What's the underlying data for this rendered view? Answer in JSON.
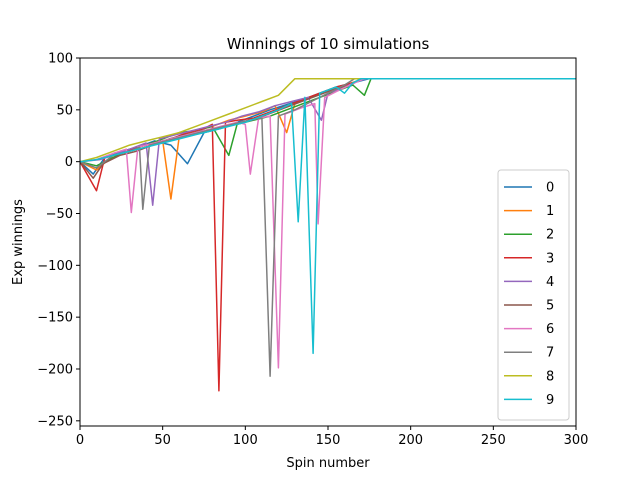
{
  "chart_data": {
    "type": "line",
    "title": "Winnings of 10 simulations",
    "xlabel": "Spin number",
    "ylabel": "Exp winnings",
    "xlim": [
      0,
      300
    ],
    "ylim": [
      -255,
      100
    ],
    "x_ticks": [
      0,
      50,
      100,
      150,
      200,
      250,
      300
    ],
    "y_ticks": [
      100,
      50,
      0,
      -50,
      -100,
      -150,
      -200,
      -250
    ],
    "x_tick_labels": [
      "0",
      "50",
      "100",
      "150",
      "200",
      "250",
      "300"
    ],
    "y_tick_labels": [
      "100",
      "50",
      "0",
      "−50",
      "−100",
      "−150",
      "−200",
      "−250"
    ],
    "grid": false,
    "legend_position": "lower-right",
    "series": [
      {
        "name": "0",
        "color": "#1f77b4",
        "points": [
          [
            0,
            0
          ],
          [
            8,
            -12
          ],
          [
            15,
            4
          ],
          [
            25,
            10
          ],
          [
            35,
            14
          ],
          [
            45,
            20
          ],
          [
            55,
            16
          ],
          [
            65,
            -2
          ],
          [
            75,
            28
          ],
          [
            85,
            32
          ],
          [
            95,
            38
          ],
          [
            105,
            44
          ],
          [
            115,
            50
          ],
          [
            125,
            55
          ],
          [
            135,
            60
          ],
          [
            145,
            66
          ],
          [
            155,
            72
          ],
          [
            165,
            76
          ],
          [
            170,
            78
          ],
          [
            175,
            80
          ],
          [
            300,
            80
          ]
        ]
      },
      {
        "name": "1",
        "color": "#ff7f0e",
        "points": [
          [
            0,
            0
          ],
          [
            10,
            -8
          ],
          [
            20,
            6
          ],
          [
            30,
            10
          ],
          [
            40,
            14
          ],
          [
            50,
            20
          ],
          [
            55,
            -36
          ],
          [
            60,
            24
          ],
          [
            70,
            30
          ],
          [
            80,
            34
          ],
          [
            90,
            40
          ],
          [
            100,
            44
          ],
          [
            110,
            48
          ],
          [
            118,
            54
          ],
          [
            125,
            28
          ],
          [
            130,
            56
          ],
          [
            140,
            62
          ],
          [
            150,
            68
          ],
          [
            160,
            74
          ],
          [
            168,
            78
          ],
          [
            172,
            80
          ],
          [
            300,
            80
          ]
        ]
      },
      {
        "name": "2",
        "color": "#2ca02c",
        "points": [
          [
            0,
            0
          ],
          [
            10,
            -4
          ],
          [
            20,
            4
          ],
          [
            30,
            12
          ],
          [
            40,
            16
          ],
          [
            50,
            22
          ],
          [
            60,
            28
          ],
          [
            70,
            30
          ],
          [
            80,
            34
          ],
          [
            90,
            6
          ],
          [
            95,
            36
          ],
          [
            105,
            40
          ],
          [
            115,
            44
          ],
          [
            125,
            50
          ],
          [
            135,
            56
          ],
          [
            145,
            62
          ],
          [
            155,
            68
          ],
          [
            165,
            74
          ],
          [
            172,
            64
          ],
          [
            176,
            80
          ],
          [
            300,
            80
          ]
        ]
      },
      {
        "name": "3",
        "color": "#d62728",
        "points": [
          [
            0,
            0
          ],
          [
            10,
            -28
          ],
          [
            15,
            4
          ],
          [
            25,
            8
          ],
          [
            35,
            14
          ],
          [
            45,
            18
          ],
          [
            55,
            22
          ],
          [
            65,
            28
          ],
          [
            75,
            32
          ],
          [
            80,
            36
          ],
          [
            84,
            -221
          ],
          [
            88,
            38
          ],
          [
            95,
            40
          ],
          [
            105,
            42
          ],
          [
            115,
            48
          ],
          [
            125,
            54
          ],
          [
            135,
            60
          ],
          [
            145,
            66
          ],
          [
            155,
            72
          ],
          [
            165,
            76
          ],
          [
            172,
            80
          ],
          [
            300,
            80
          ]
        ]
      },
      {
        "name": "4",
        "color": "#9467bd",
        "points": [
          [
            0,
            0
          ],
          [
            12,
            2
          ],
          [
            20,
            6
          ],
          [
            30,
            12
          ],
          [
            40,
            18
          ],
          [
            44,
            -42
          ],
          [
            48,
            22
          ],
          [
            58,
            26
          ],
          [
            68,
            30
          ],
          [
            78,
            34
          ],
          [
            88,
            38
          ],
          [
            98,
            44
          ],
          [
            108,
            48
          ],
          [
            118,
            54
          ],
          [
            128,
            58
          ],
          [
            138,
            62
          ],
          [
            146,
            40
          ],
          [
            150,
            66
          ],
          [
            160,
            72
          ],
          [
            168,
            78
          ],
          [
            174,
            80
          ],
          [
            300,
            80
          ]
        ]
      },
      {
        "name": "5",
        "color": "#8c564b",
        "points": [
          [
            0,
            0
          ],
          [
            8,
            -16
          ],
          [
            14,
            -2
          ],
          [
            24,
            6
          ],
          [
            34,
            10
          ],
          [
            44,
            16
          ],
          [
            54,
            22
          ],
          [
            64,
            26
          ],
          [
            74,
            30
          ],
          [
            84,
            32
          ],
          [
            94,
            36
          ],
          [
            104,
            40
          ],
          [
            114,
            46
          ],
          [
            124,
            52
          ],
          [
            134,
            58
          ],
          [
            144,
            64
          ],
          [
            154,
            70
          ],
          [
            164,
            74
          ],
          [
            170,
            80
          ],
          [
            300,
            80
          ]
        ]
      },
      {
        "name": "6",
        "color": "#e377c2",
        "points": [
          [
            0,
            0
          ],
          [
            10,
            2
          ],
          [
            20,
            8
          ],
          [
            28,
            12
          ],
          [
            31,
            -49
          ],
          [
            35,
            14
          ],
          [
            45,
            18
          ],
          [
            55,
            22
          ],
          [
            65,
            26
          ],
          [
            75,
            30
          ],
          [
            85,
            34
          ],
          [
            95,
            38
          ],
          [
            100,
            36
          ],
          [
            103,
            -12
          ],
          [
            108,
            42
          ],
          [
            115,
            44
          ],
          [
            120,
            -199
          ],
          [
            124,
            46
          ],
          [
            134,
            52
          ],
          [
            142,
            56
          ],
          [
            144,
            -60
          ],
          [
            148,
            62
          ],
          [
            158,
            70
          ],
          [
            166,
            76
          ],
          [
            172,
            80
          ],
          [
            300,
            80
          ]
        ]
      },
      {
        "name": "7",
        "color": "#7f7f7f",
        "points": [
          [
            0,
            0
          ],
          [
            10,
            -6
          ],
          [
            20,
            6
          ],
          [
            30,
            10
          ],
          [
            36,
            14
          ],
          [
            38,
            -46
          ],
          [
            42,
            16
          ],
          [
            52,
            20
          ],
          [
            62,
            24
          ],
          [
            72,
            28
          ],
          [
            82,
            32
          ],
          [
            92,
            36
          ],
          [
            102,
            40
          ],
          [
            110,
            42
          ],
          [
            115,
            -207
          ],
          [
            120,
            44
          ],
          [
            130,
            50
          ],
          [
            140,
            58
          ],
          [
            150,
            66
          ],
          [
            160,
            74
          ],
          [
            166,
            80
          ],
          [
            300,
            80
          ]
        ]
      },
      {
        "name": "8",
        "color": "#bcbd22",
        "points": [
          [
            0,
            0
          ],
          [
            10,
            4
          ],
          [
            20,
            10
          ],
          [
            30,
            16
          ],
          [
            40,
            20
          ],
          [
            50,
            24
          ],
          [
            60,
            28
          ],
          [
            70,
            34
          ],
          [
            80,
            40
          ],
          [
            90,
            46
          ],
          [
            100,
            52
          ],
          [
            110,
            58
          ],
          [
            120,
            64
          ],
          [
            130,
            80
          ],
          [
            140,
            80
          ],
          [
            150,
            80
          ],
          [
            155,
            80
          ],
          [
            300,
            80
          ]
        ]
      },
      {
        "name": "9",
        "color": "#17becf",
        "points": [
          [
            0,
            0
          ],
          [
            10,
            2
          ],
          [
            20,
            6
          ],
          [
            30,
            10
          ],
          [
            40,
            14
          ],
          [
            50,
            18
          ],
          [
            60,
            22
          ],
          [
            70,
            26
          ],
          [
            80,
            30
          ],
          [
            90,
            34
          ],
          [
            100,
            38
          ],
          [
            110,
            44
          ],
          [
            120,
            50
          ],
          [
            128,
            56
          ],
          [
            132,
            -58
          ],
          [
            136,
            62
          ],
          [
            141,
            -185
          ],
          [
            145,
            66
          ],
          [
            155,
            72
          ],
          [
            160,
            66
          ],
          [
            165,
            76
          ],
          [
            170,
            80
          ],
          [
            300,
            80
          ]
        ]
      }
    ]
  }
}
